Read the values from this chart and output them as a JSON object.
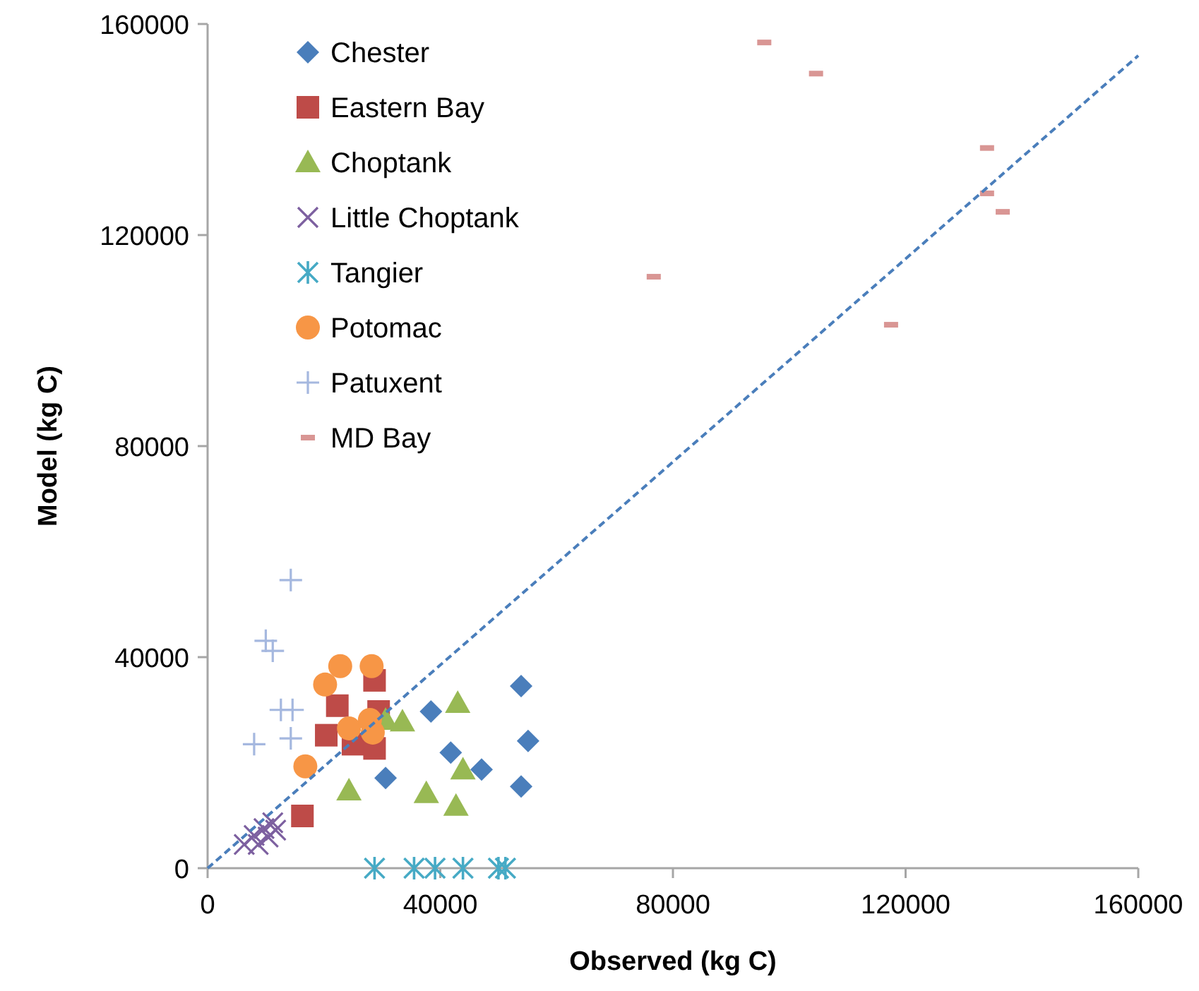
{
  "chart_data": {
    "type": "scatter",
    "xlabel": "Observed (kg C)",
    "ylabel": "Model (kg C)",
    "xlim": [
      0,
      160000
    ],
    "ylim": [
      0,
      160000
    ],
    "xticks": [
      0,
      40000,
      80000,
      120000,
      160000
    ],
    "yticks": [
      0,
      40000,
      80000,
      120000,
      160000
    ],
    "grid": false,
    "legend": "top left",
    "series": [
      {
        "name": "Chester",
        "color": "#4a7ebb",
        "marker": "diamond",
        "x": [
          30600,
          38400,
          41800,
          47100,
          53900,
          55100,
          53900
        ],
        "values": [
          17100,
          29700,
          21900,
          18700,
          34500,
          24100,
          15500
        ]
      },
      {
        "name": "Eastern Bay",
        "color": "#be4b48",
        "marker": "square",
        "x": [
          28700,
          29400,
          22300,
          20400,
          25000,
          28700,
          16300
        ],
        "values": [
          35600,
          29700,
          30800,
          25200,
          23500,
          22700,
          9900
        ]
      },
      {
        "name": "Choptank",
        "color": "#98b954",
        "marker": "triangle",
        "x": [
          30600,
          33500,
          43000,
          43900,
          24300,
          37600,
          42700
        ],
        "values": [
          28100,
          27800,
          31300,
          18700,
          14700,
          14200,
          11800
        ]
      },
      {
        "name": "Little Choptank",
        "color": "#7d60a0",
        "marker": "x",
        "x": [
          6300,
          8000,
          9700,
          11200,
          8700,
          10400,
          11700
        ],
        "values": [
          4500,
          6200,
          7500,
          8600,
          4500,
          5900,
          7200
        ]
      },
      {
        "name": "Tangier",
        "color": "#46aac5",
        "marker": "cross",
        "x": [
          28700,
          35500,
          39100,
          43900,
          50000,
          51200
        ],
        "values": [
          0,
          0,
          0,
          0,
          0,
          0
        ]
      },
      {
        "name": "Potomac",
        "color": "#f79646",
        "marker": "circle",
        "x": [
          22800,
          28200,
          20200,
          24300,
          27900,
          28400,
          16800
        ],
        "values": [
          38300,
          38300,
          34800,
          26500,
          28100,
          25700,
          19300
        ]
      },
      {
        "name": "Patuxent",
        "color": "#a5b8df",
        "marker": "plus",
        "x": [
          14300,
          10000,
          11200,
          12600,
          14600,
          14300,
          8000
        ],
        "values": [
          54600,
          43100,
          41200,
          30000,
          30000,
          24600,
          23500
        ]
      },
      {
        "name": "MD Bay",
        "color": "#d99694",
        "x": [
          95700,
          104600,
          134000,
          134000,
          136700,
          76700,
          117500
        ],
        "values": [
          156500,
          150600,
          136500,
          127900,
          124400,
          112100,
          103000
        ]
      },
      {
        "type": "line",
        "color": "#4a7ebb",
        "line_style": "dashed",
        "x": [
          0,
          160000
        ],
        "values": [
          0,
          154000
        ]
      }
    ]
  }
}
